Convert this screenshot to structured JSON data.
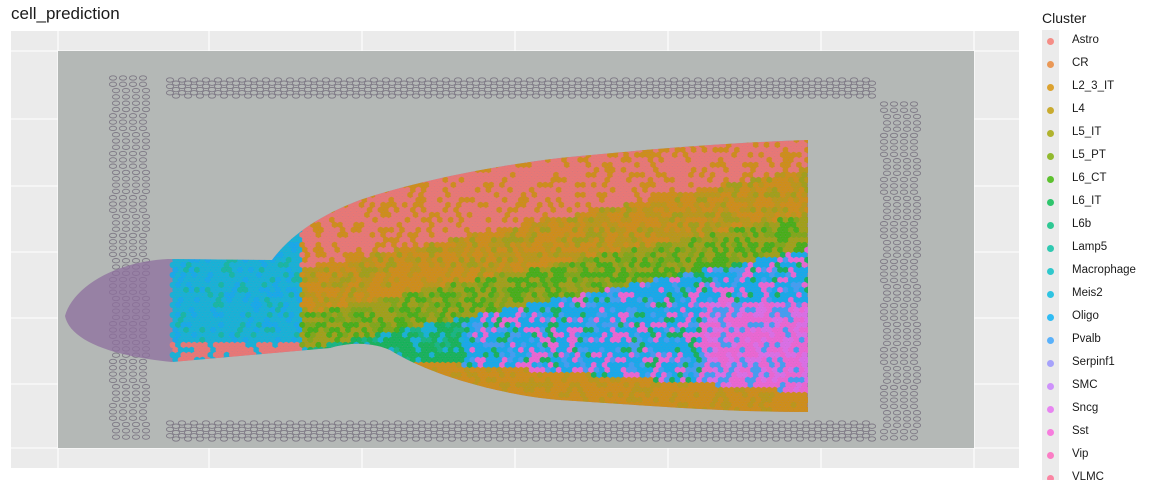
{
  "chart_data": {
    "type": "scatter",
    "title": "cell_prediction",
    "xlabel": "",
    "ylabel": "",
    "grid": true,
    "legend_position": "right",
    "background_image": "tissue section histology image (grey background, purple H&E stained tissue with fiducial marker grid)",
    "legend": {
      "title": "Cluster",
      "items": [
        {
          "label": "Astro",
          "color": "#F8766D"
        },
        {
          "label": "CR",
          "color": "#EA8331"
        },
        {
          "label": "L2_3_IT",
          "color": "#D89000"
        },
        {
          "label": "L4",
          "color": "#C09B00"
        },
        {
          "label": "L5_IT",
          "color": "#A3A500"
        },
        {
          "label": "L5_PT",
          "color": "#7CAE00"
        },
        {
          "label": "L6_CT",
          "color": "#39B600"
        },
        {
          "label": "L6_IT",
          "color": "#00BB4E"
        },
        {
          "label": "L6b",
          "color": "#00BF7D"
        },
        {
          "label": "Lamp5",
          "color": "#00C1A3"
        },
        {
          "label": "Macrophage",
          "color": "#00BFC4"
        },
        {
          "label": "Meis2",
          "color": "#00BAE0"
        },
        {
          "label": "Oligo",
          "color": "#00B0F6"
        },
        {
          "label": "Pvalb",
          "color": "#35A2FF"
        },
        {
          "label": "Serpinf1",
          "color": "#9590FF"
        },
        {
          "label": "SMC",
          "color": "#C77CFF"
        },
        {
          "label": "Sncg",
          "color": "#E76BF3"
        },
        {
          "label": "Sst",
          "color": "#FA62DB"
        },
        {
          "label": "Vip",
          "color": "#FF62BC"
        },
        {
          "label": "VLMC",
          "color": "#FF6C91"
        }
      ]
    }
  }
}
